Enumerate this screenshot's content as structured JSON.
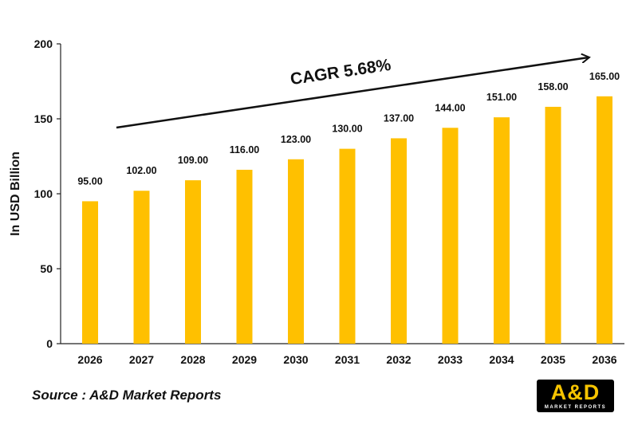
{
  "chart_data": {
    "type": "bar",
    "categories": [
      "2026",
      "2027",
      "2028",
      "2029",
      "2030",
      "2031",
      "2032",
      "2033",
      "2034",
      "2035",
      "2036"
    ],
    "values": [
      95.0,
      102.0,
      109.0,
      116.0,
      123.0,
      130.0,
      137.0,
      144.0,
      151.0,
      158.0,
      165.0
    ],
    "value_labels": [
      "95.00",
      "102.00",
      "109.00",
      "116.00",
      "123.00",
      "130.00",
      "137.00",
      "144.00",
      "151.00",
      "158.00",
      "165.00"
    ],
    "ylabel": "In USD Billion",
    "ylim": [
      0,
      200
    ],
    "yticks": [
      0,
      50,
      100,
      150,
      200
    ],
    "grid": false,
    "bar_color": "#FFC000",
    "annotation": "CAGR 5.68%"
  },
  "source": "Source : A&D Market Reports",
  "logo": {
    "main": "A&D",
    "sub": "MARKET REPORTS",
    "colors": {
      "background": "#000000",
      "accent": "#F7C400"
    }
  }
}
